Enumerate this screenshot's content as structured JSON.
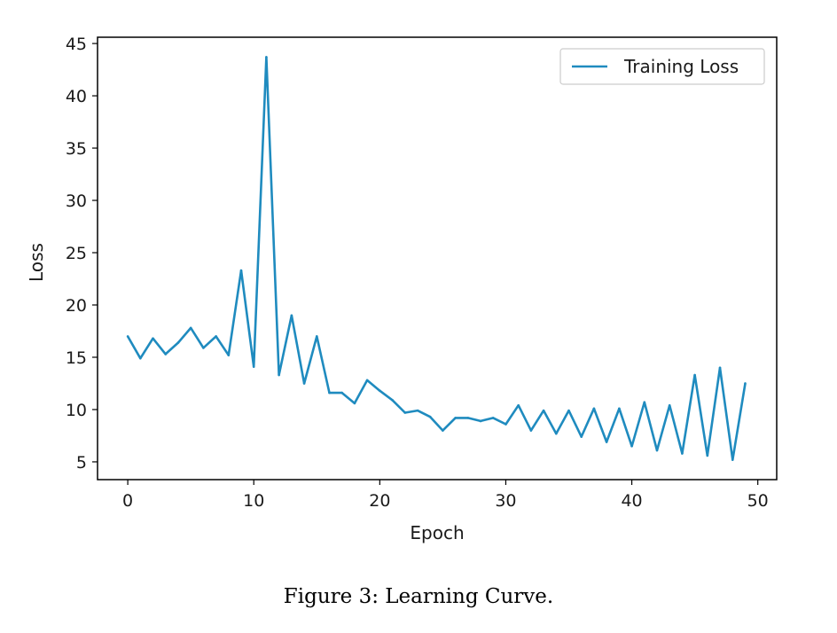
{
  "caption": "Figure 3: Learning Curve.",
  "chart_data": {
    "type": "line",
    "xlabel": "Epoch",
    "ylabel": "Loss",
    "xlim": [
      -2.4,
      51.5
    ],
    "ylim": [
      3.3,
      45.6
    ],
    "xticks": [
      0,
      10,
      20,
      30,
      40,
      50
    ],
    "yticks": [
      5,
      10,
      15,
      20,
      25,
      30,
      35,
      40,
      45
    ],
    "grid": false,
    "legend_position": "top-right",
    "series": [
      {
        "name": "Training Loss",
        "color": "#1f8bbf",
        "x": [
          0,
          1,
          2,
          3,
          4,
          5,
          6,
          7,
          8,
          9,
          10,
          11,
          12,
          13,
          14,
          15,
          16,
          17,
          18,
          19,
          20,
          21,
          22,
          23,
          24,
          25,
          26,
          27,
          28,
          29,
          30,
          31,
          32,
          33,
          34,
          35,
          36,
          37,
          38,
          39,
          40,
          41,
          42,
          43,
          44,
          45,
          46,
          47,
          48,
          49
        ],
        "y": [
          17.0,
          14.9,
          16.8,
          15.3,
          16.4,
          17.8,
          15.9,
          17.0,
          15.2,
          23.3,
          14.1,
          43.7,
          13.3,
          19.0,
          12.5,
          17.0,
          11.6,
          11.6,
          10.6,
          12.8,
          11.8,
          10.9,
          9.7,
          9.9,
          9.3,
          8.0,
          9.2,
          9.2,
          8.9,
          9.2,
          8.6,
          10.4,
          8.0,
          9.9,
          7.7,
          9.9,
          7.4,
          10.1,
          6.9,
          10.1,
          6.5,
          10.7,
          6.1,
          10.4,
          5.8,
          13.3,
          5.6,
          14.0,
          5.2,
          12.5
        ]
      }
    ]
  }
}
